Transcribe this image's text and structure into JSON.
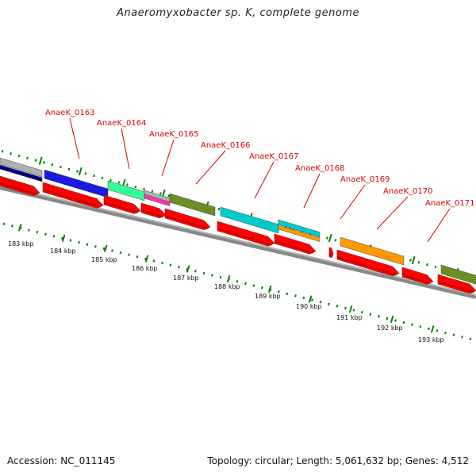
{
  "title": "Anaeromyxobacter sp. K, complete genome",
  "accession": "Accession: NC_011145",
  "summary": "Topology: circular; Length: 5,061,632 bp; Genes: 4,512",
  "colors": {
    "cds": "#ff0000",
    "leader": "#dd0000",
    "tick": "#008000",
    "backbone": "#808080"
  },
  "gene_labels": [
    "AnaeK_0163",
    "AnaeK_0164",
    "AnaeK_0165",
    "AnaeK_0166",
    "AnaeK_0167",
    "AnaeK_0168",
    "AnaeK_0169",
    "AnaeK_0170",
    "AnaeK_0171"
  ],
  "kbp_labels": [
    "183 kbp",
    "184 kbp",
    "185 kbp",
    "186 kbp",
    "187 kbp",
    "188 kbp",
    "189 kbp",
    "190 kbp",
    "191 kbp",
    "192 kbp",
    "193 kbp"
  ],
  "feature_blocks": [
    {
      "name": "feature-navy",
      "color": "#000080"
    },
    {
      "name": "feature-gray",
      "color": "#b0b0b0"
    },
    {
      "name": "feature-blue",
      "color": "#1a1ae6"
    },
    {
      "name": "feature-seagreen",
      "color": "#33ff99"
    },
    {
      "name": "feature-gray-2",
      "color": "#b0b0b0"
    },
    {
      "name": "feature-magenta",
      "color": "#ff33aa"
    },
    {
      "name": "feature-olive",
      "color": "#6b8e23"
    },
    {
      "name": "feature-cyan",
      "color": "#00cccc"
    },
    {
      "name": "feature-cyan-2",
      "color": "#00cccc"
    },
    {
      "name": "feature-orange",
      "color": "#ff9900"
    },
    {
      "name": "feature-orange-2",
      "color": "#ff9900"
    },
    {
      "name": "feature-olive-2",
      "color": "#6b8e23"
    }
  ]
}
